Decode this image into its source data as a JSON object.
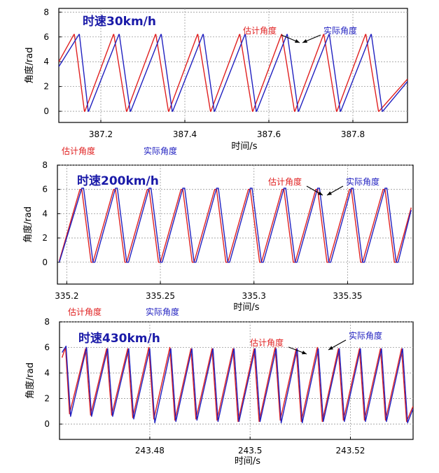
{
  "colors": {
    "estimated": "#e02020",
    "actual": "#2020c0",
    "title": "#1a1aa8",
    "axis": "#000000",
    "grid": "#9a9a9a"
  },
  "chart_data": [
    {
      "type": "line",
      "title": "时速30km/h",
      "xlabel": "时间/s",
      "ylabel": "角度/rad",
      "xlim": [
        387.1,
        387.93
      ],
      "ylim": [
        -0.9,
        8.3
      ],
      "x_ticks": [
        "387.2",
        "387.4",
        "387.6",
        "387.8"
      ],
      "y_ticks": [
        "0",
        "2",
        "4",
        "6",
        "8"
      ],
      "grid": true,
      "legend": [
        "估计角度",
        "实际角度"
      ],
      "annotations": {
        "estimated": "估计角度",
        "actual": "实际角度"
      },
      "series": [
        {
          "name": "估计角度",
          "color": "#e02020",
          "x": [
            387.1,
            387.136,
            387.137,
            387.161,
            387.162,
            387.23,
            387.231,
            387.261,
            387.262,
            387.33,
            387.331,
            387.361,
            387.362,
            387.43,
            387.431,
            387.461,
            387.462,
            387.53,
            387.531,
            387.561,
            387.562,
            387.63,
            387.631,
            387.661,
            387.662,
            387.73,
            387.731,
            387.761,
            387.762,
            387.83,
            387.831,
            387.861,
            387.862,
            387.93
          ],
          "y": [
            4.0,
            6.2,
            6.2,
            0.0,
            0.0,
            6.2,
            6.2,
            0.0,
            0.0,
            6.2,
            6.2,
            0.0,
            0.0,
            6.2,
            6.2,
            0.0,
            0.0,
            6.2,
            6.2,
            0.0,
            0.0,
            6.2,
            6.2,
            0.0,
            0.0,
            6.2,
            6.2,
            0.0,
            0.0,
            6.2,
            6.2,
            0.0,
            0.0,
            2.6
          ]
        },
        {
          "name": "实际角度",
          "color": "#2020c0",
          "x": [
            387.1,
            387.148,
            387.149,
            387.17,
            387.171,
            387.243,
            387.244,
            387.27,
            387.271,
            387.343,
            387.344,
            387.37,
            387.371,
            387.443,
            387.444,
            387.47,
            387.471,
            387.543,
            387.544,
            387.57,
            387.571,
            387.643,
            387.644,
            387.67,
            387.671,
            387.743,
            387.744,
            387.77,
            387.771,
            387.843,
            387.844,
            387.87,
            387.871,
            387.93
          ],
          "y": [
            3.6,
            6.2,
            6.2,
            0.0,
            0.0,
            6.2,
            6.2,
            0.0,
            0.0,
            6.2,
            6.2,
            0.0,
            0.0,
            6.2,
            6.2,
            0.0,
            0.0,
            6.2,
            6.2,
            0.0,
            0.0,
            6.2,
            6.2,
            0.0,
            0.0,
            6.2,
            6.2,
            0.0,
            0.0,
            6.2,
            6.2,
            0.0,
            0.0,
            2.4
          ]
        }
      ]
    },
    {
      "type": "line",
      "title": "时速200km/h",
      "xlabel": "时间/s",
      "ylabel": "角度/rad",
      "xlim": [
        335.195,
        335.385
      ],
      "ylim": [
        -1.8,
        8.0
      ],
      "x_ticks": [
        "335.2",
        "335.25",
        "335.3",
        "335.35"
      ],
      "y_ticks": [
        "0",
        "2",
        "4",
        "6",
        "8"
      ],
      "grid": true,
      "legend": [
        "估计角度",
        "实际角度"
      ],
      "annotations": {
        "estimated": "估计角度",
        "actual": "实际角度"
      },
      "series": [
        {
          "name": "估计角度",
          "color": "#e02020",
          "x": [
            335.196,
            335.207,
            335.208,
            335.213,
            335.214,
            335.225,
            335.226,
            335.231,
            335.232,
            335.243,
            335.244,
            335.249,
            335.25,
            335.261,
            335.262,
            335.267,
            335.268,
            335.279,
            335.28,
            335.285,
            335.286,
            335.297,
            335.298,
            335.303,
            335.304,
            335.315,
            335.316,
            335.321,
            335.322,
            335.333,
            335.334,
            335.339,
            335.34,
            335.351,
            335.352,
            335.357,
            335.358,
            335.369,
            335.37,
            335.375,
            335.376,
            335.384
          ],
          "y": [
            0.1,
            6.0,
            6.0,
            0.0,
            0.0,
            6.0,
            6.0,
            0.0,
            0.0,
            6.0,
            6.0,
            0.0,
            0.0,
            6.0,
            6.0,
            0.0,
            0.0,
            6.0,
            6.0,
            0.0,
            0.0,
            6.0,
            6.0,
            0.0,
            0.0,
            6.0,
            6.0,
            0.0,
            0.0,
            6.0,
            6.0,
            0.0,
            0.0,
            6.0,
            6.0,
            0.0,
            0.0,
            6.0,
            6.0,
            0.0,
            0.0,
            4.5
          ]
        },
        {
          "name": "实际角度",
          "color": "#2020c0",
          "x": [
            335.196,
            335.208,
            335.209,
            335.214,
            335.215,
            335.226,
            335.227,
            335.232,
            335.233,
            335.244,
            335.245,
            335.25,
            335.251,
            335.262,
            335.263,
            335.268,
            335.269,
            335.28,
            335.281,
            335.286,
            335.287,
            335.298,
            335.299,
            335.304,
            335.305,
            335.316,
            335.317,
            335.322,
            335.323,
            335.334,
            335.335,
            335.34,
            335.341,
            335.352,
            335.353,
            335.358,
            335.359,
            335.37,
            335.371,
            335.376,
            335.377,
            335.384
          ],
          "y": [
            0.0,
            6.1,
            6.1,
            0.0,
            0.0,
            6.1,
            6.1,
            0.0,
            0.0,
            6.1,
            6.1,
            0.0,
            0.0,
            6.1,
            6.1,
            0.0,
            0.0,
            6.1,
            6.1,
            0.0,
            0.0,
            6.1,
            6.1,
            0.0,
            0.0,
            6.1,
            6.1,
            0.0,
            0.0,
            6.1,
            6.1,
            0.0,
            0.0,
            6.1,
            6.1,
            0.0,
            0.0,
            6.1,
            6.1,
            0.0,
            0.0,
            4.3
          ]
        }
      ]
    },
    {
      "type": "line",
      "title": "时速430km/h",
      "xlabel": "时间/s",
      "ylabel": "角度/rad",
      "xlim": [
        243.462,
        243.5325
      ],
      "ylim": [
        -1.2,
        8.0
      ],
      "x_ticks": [
        "243.48",
        "243.5",
        "243.52"
      ],
      "y_ticks": [
        "0",
        "2",
        "4",
        "6",
        "8"
      ],
      "grid": true,
      "legend": [],
      "annotations": {
        "estimated": "估计角度",
        "actual": "实际角度"
      },
      "series": [
        {
          "name": "估计角度",
          "color": "#e02020",
          "x": [
            243.4625,
            243.4632,
            243.464,
            243.4672,
            243.4682,
            243.4714,
            243.4724,
            243.4756,
            243.4766,
            243.4798,
            243.4808,
            243.484,
            243.485,
            243.4882,
            243.4892,
            243.4924,
            243.4934,
            243.4966,
            243.4976,
            243.5008,
            243.5018,
            243.505,
            243.506,
            243.5092,
            243.5102,
            243.5134,
            243.5144,
            243.5176,
            243.5186,
            243.5218,
            243.5228,
            243.526,
            243.527,
            243.5302,
            243.5312,
            243.5325
          ],
          "y": [
            5.2,
            6.0,
            0.8,
            5.9,
            0.7,
            5.9,
            0.7,
            5.9,
            0.5,
            6.0,
            0.4,
            6.0,
            0.3,
            5.9,
            0.4,
            5.9,
            0.3,
            5.9,
            0.2,
            5.9,
            0.2,
            6.0,
            0.3,
            5.9,
            0.2,
            6.0,
            0.2,
            5.9,
            0.3,
            5.9,
            0.3,
            5.9,
            0.3,
            5.9,
            0.2,
            1.4
          ]
        },
        {
          "name": "实际角度",
          "color": "#2020c0",
          "x": [
            243.4625,
            243.4633,
            243.4642,
            243.4674,
            243.4684,
            243.4716,
            243.4726,
            243.4758,
            243.4768,
            243.48,
            243.481,
            243.4842,
            243.4852,
            243.4884,
            243.4894,
            243.4926,
            243.4936,
            243.4968,
            243.4978,
            243.501,
            243.502,
            243.5052,
            243.5062,
            243.5094,
            243.5104,
            243.5136,
            243.5146,
            243.5178,
            243.5188,
            243.522,
            243.523,
            243.5262,
            243.5272,
            243.5304,
            243.5314,
            243.5325
          ],
          "y": [
            5.6,
            6.1,
            0.6,
            6.0,
            0.6,
            5.9,
            0.6,
            5.9,
            0.4,
            5.9,
            0.1,
            5.9,
            0.2,
            5.9,
            0.3,
            5.9,
            0.2,
            5.9,
            0.2,
            5.9,
            0.2,
            5.9,
            0.1,
            5.9,
            0.1,
            5.9,
            0.2,
            5.9,
            0.2,
            5.9,
            0.2,
            5.9,
            0.2,
            5.9,
            0.1,
            1.2
          ]
        }
      ]
    }
  ]
}
